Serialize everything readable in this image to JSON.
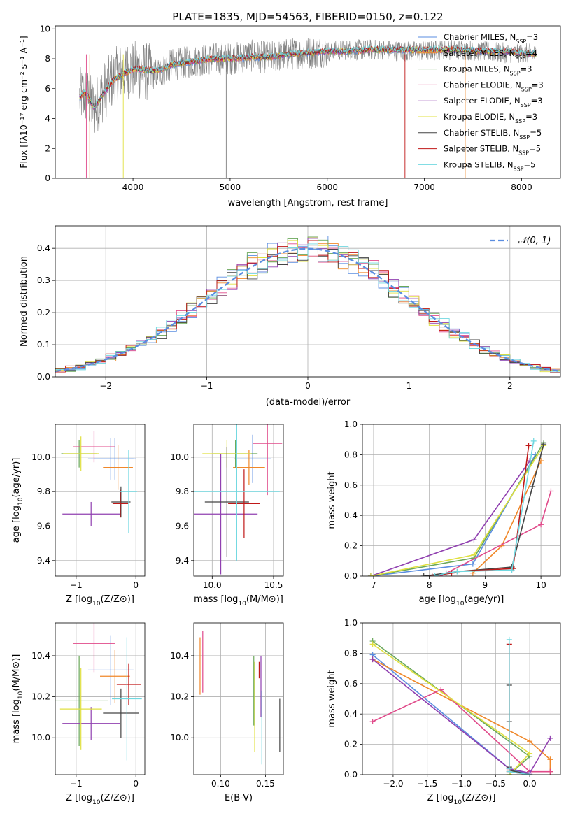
{
  "figure": {
    "title": "PLATE=1835, MJD=54563, FIBERID=0150, z=0.122"
  },
  "colors": [
    "#5a8de0",
    "#f0882a",
    "#6aa85a",
    "#e04a8a",
    "#9040b0",
    "#e0e040",
    "#444444",
    "#c01818",
    "#70d8e0"
  ],
  "chart_data": [
    {
      "type": "line",
      "id": "spectrum",
      "title": "PLATE=1835, MJD=54563, FIBERID=0150, z=0.122",
      "xlabel": "wavelength [Angstrom, rest frame]",
      "ylabel": "Flux [fλ10⁻¹⁷ erg cm⁻² s⁻¹ A⁻¹]",
      "xlim": [
        3200,
        8400
      ],
      "ylim": [
        0,
        10.2
      ],
      "xticks": [
        4000,
        5000,
        6000,
        7000,
        8000
      ],
      "yticks": [
        0,
        2,
        4,
        6,
        8,
        10
      ],
      "grid": false,
      "legend_position": "top-right",
      "data_series": {
        "name": "data",
        "color": "#808080",
        "x": [
          3450,
          3500,
          3550,
          3600,
          3700,
          3800,
          3900,
          4000,
          4100,
          4200,
          4300,
          4400,
          4600,
          4800,
          5000,
          5200,
          5400,
          5600,
          5800,
          6000,
          6200,
          6400,
          6600,
          6800,
          7000,
          7200,
          7400,
          7600,
          7800,
          8000,
          8150
        ],
        "y": [
          5.4,
          5.7,
          5.2,
          4.6,
          5.8,
          6.7,
          7.2,
          7.3,
          7.2,
          7.0,
          7.2,
          7.6,
          7.8,
          8.0,
          8.0,
          8.2,
          8.1,
          8.3,
          8.4,
          8.5,
          8.6,
          8.6,
          8.6,
          8.5,
          8.5,
          8.6,
          8.6,
          8.5,
          8.4,
          8.4,
          8.3
        ],
        "noise_amp": 2.0
      },
      "model": {
        "x": [
          3450,
          3500,
          3550,
          3600,
          3700,
          3800,
          3900,
          4000,
          4100,
          4200,
          4300,
          4400,
          4600,
          4800,
          5000,
          5200,
          5400,
          5600,
          5800,
          6000,
          6200,
          6400,
          6600,
          6800,
          7000,
          7200,
          7400,
          7600,
          7800,
          8000,
          8150
        ],
        "y": [
          5.4,
          5.8,
          5.3,
          4.7,
          5.7,
          6.6,
          7.0,
          7.3,
          7.3,
          7.2,
          7.3,
          7.6,
          7.8,
          8.0,
          8.0,
          8.1,
          8.1,
          8.3,
          8.4,
          8.5,
          8.5,
          8.6,
          8.6,
          8.6,
          8.6,
          8.6,
          8.6,
          8.5,
          8.5,
          8.4,
          8.3
        ]
      },
      "series": [
        {
          "name": "Chabrier MILES, N_SSP=3",
          "label_main": "Chabrier MILES, N",
          "label_sub": "SSP",
          "label_tail": "=3",
          "color": "#5a8de0"
        },
        {
          "name": "Salpeter MILES, N_SSP=4",
          "label_main": "Salpeter MILES, N",
          "label_sub": "SSP",
          "label_tail": "=4",
          "color": "#f0882a"
        },
        {
          "name": "Kroupa MILES, N_SSP=3",
          "label_main": "Kroupa MILES, N",
          "label_sub": "SSP",
          "label_tail": "=3",
          "color": "#6aa85a"
        },
        {
          "name": "Chabrier ELODIE, N_SSP=3",
          "label_main": "Chabrier ELODIE, N",
          "label_sub": "SSP",
          "label_tail": "=3",
          "color": "#e04a8a"
        },
        {
          "name": "Salpeter ELODIE, N_SSP=3",
          "label_main": "Salpeter ELODIE, N",
          "label_sub": "SSP",
          "label_tail": "=3",
          "color": "#9040b0"
        },
        {
          "name": "Kroupa ELODIE, N_SSP=3",
          "label_main": "Kroupa ELODIE, N",
          "label_sub": "SSP",
          "label_tail": "=3",
          "color": "#e0e040"
        },
        {
          "name": "Chabrier STELIB, N_SSP=5",
          "label_main": "Chabrier STELIB, N",
          "label_sub": "SSP",
          "label_tail": "=5",
          "color": "#444444"
        },
        {
          "name": "Salpeter STELIB, N_SSP=5",
          "label_main": "Salpeter STELIB, N",
          "label_sub": "SSP",
          "label_tail": "=5",
          "color": "#c01818"
        },
        {
          "name": "Kroupa STELIB, N_SSP=5",
          "label_main": "Kroupa STELIB, N",
          "label_sub": "SSP",
          "label_tail": "=5",
          "color": "#70d8e0"
        }
      ]
    },
    {
      "type": "histogram",
      "id": "residuals",
      "xlabel": "(data-model)/error",
      "ylabel": "Normed distribution",
      "xlim": [
        -2.5,
        2.5
      ],
      "ylim": [
        0,
        0.47
      ],
      "xticks": [
        -2,
        -1,
        0,
        1,
        2
      ],
      "xtick_labels": [
        "−2",
        "−1",
        "0",
        "1",
        "2"
      ],
      "yticks": [
        0,
        0.1,
        0.2,
        0.3,
        0.4
      ],
      "ytick_labels": [
        "0.0",
        "0.1",
        "0.2",
        "0.3",
        "0.4"
      ],
      "grid": true,
      "legend_position": "top-right",
      "bin_width": 0.1,
      "gaussian": {
        "name": "𝒩(0, 1)",
        "mean": 0,
        "sigma": 1,
        "color": "#5a8de0",
        "dashed": true
      }
    },
    {
      "type": "scatter",
      "id": "age_vs_Z",
      "xlabel_pre": "Z [log",
      "xlabel_sub": "10",
      "xlabel_post": "(Z/Z⊙)]",
      "ylabel_pre": "age  [log",
      "ylabel_sub": "10",
      "ylabel_post": "(age/yr)]",
      "xlim": [
        -1.35,
        0.15
      ],
      "ylim": [
        9.31,
        10.19
      ],
      "xticks": [
        -1,
        0
      ],
      "xtick_labels": [
        "−1",
        "0"
      ],
      "yticks": [
        9.4,
        9.6,
        9.8,
        10.0
      ],
      "ytick_labels": [
        "9.4",
        "9.6",
        "9.8",
        "10.0"
      ],
      "grid": true,
      "points": [
        {
          "x": -0.42,
          "y": 9.99,
          "xerr": 0.38,
          "yerr": 0.12,
          "color": "#5a8de0"
        },
        {
          "x": -0.35,
          "y": 9.99,
          "xerr": 0.35,
          "yerr": 0.12,
          "color": "#5a8de0"
        },
        {
          "x": -0.3,
          "y": 9.94,
          "xerr": 0.25,
          "yerr": 0.13,
          "color": "#f0882a"
        },
        {
          "x": -0.95,
          "y": 10.02,
          "xerr": 0.3,
          "yerr": 0.08,
          "color": "#6aa85a"
        },
        {
          "x": -0.7,
          "y": 10.06,
          "xerr": 0.35,
          "yerr": 0.09,
          "color": "#e04a8a"
        },
        {
          "x": -0.75,
          "y": 9.67,
          "xerr": 0.48,
          "yerr": 0.07,
          "color": "#9040b0"
        },
        {
          "x": -0.92,
          "y": 10.02,
          "xerr": 0.3,
          "yerr": 0.1,
          "color": "#e0e040"
        },
        {
          "x": -0.25,
          "y": 9.74,
          "xerr": 0.16,
          "yerr": 0.09,
          "color": "#444444"
        },
        {
          "x": -0.26,
          "y": 9.73,
          "xerr": 0.13,
          "yerr": 0.08,
          "color": "#c01818"
        },
        {
          "x": -0.12,
          "y": 9.8,
          "xerr": 0.14,
          "yerr": 0.24,
          "color": "#70d8e0"
        }
      ]
    },
    {
      "type": "scatter",
      "id": "age_vs_mass",
      "xlabel_pre": "mass [log",
      "xlabel_sub": "10",
      "xlabel_post": "(M/M⊙)]",
      "xlim": [
        9.85,
        10.58
      ],
      "ylim": [
        9.31,
        10.19
      ],
      "xticks": [
        10.0,
        10.5
      ],
      "xtick_labels": [
        "10.0",
        "10.5"
      ],
      "yticks": [
        9.4,
        9.6,
        9.8,
        10.0
      ],
      "ytick_labels": [
        "9.4",
        "9.6",
        "9.8",
        "10.0"
      ],
      "grid": true,
      "points": [
        {
          "x": 10.33,
          "y": 9.99,
          "xerr": 0.15,
          "yerr": 0.14,
          "color": "#5a8de0"
        },
        {
          "x": 10.3,
          "y": 9.94,
          "xerr": 0.13,
          "yerr": 0.1,
          "color": "#f0882a"
        },
        {
          "x": 10.19,
          "y": 10.02,
          "xerr": 0.18,
          "yerr": 0.08,
          "color": "#6aa85a"
        },
        {
          "x": 10.45,
          "y": 10.08,
          "xerr": 0.12,
          "yerr": 0.3,
          "color": "#e04a8a"
        },
        {
          "x": 10.07,
          "y": 9.67,
          "xerr": 0.3,
          "yerr": 0.35,
          "color": "#9040b0"
        },
        {
          "x": 10.12,
          "y": 10.02,
          "xerr": 0.2,
          "yerr": 0.08,
          "color": "#e0e040"
        },
        {
          "x": 10.12,
          "y": 9.74,
          "xerr": 0.18,
          "yerr": 0.32,
          "color": "#444444"
        },
        {
          "x": 10.26,
          "y": 9.73,
          "xerr": 0.13,
          "yerr": 0.2,
          "color": "#c01818"
        },
        {
          "x": 10.2,
          "y": 9.8,
          "xerr": 0.35,
          "yerr": 0.4,
          "color": "#70d8e0"
        }
      ]
    },
    {
      "type": "line",
      "id": "mass_weight_vs_age",
      "xlabel_pre": "age  [log",
      "xlabel_sub": "10",
      "xlabel_post": "(age/yr)]",
      "ylabel": "mass weight",
      "xlim": [
        6.8,
        10.35
      ],
      "ylim": [
        0,
        1.0
      ],
      "xticks": [
        7,
        8,
        9,
        10
      ],
      "yticks": [
        0,
        0.2,
        0.4,
        0.6,
        0.8,
        1.0
      ],
      "ytick_labels": [
        "0.0",
        "0.2",
        "0.4",
        "0.6",
        "0.8",
        "1.0"
      ],
      "grid": true,
      "series": [
        {
          "color": "#5a8de0",
          "x": [
            6.95,
            8.78,
            9.9
          ],
          "y": [
            0.0,
            0.08,
            0.8
          ]
        },
        {
          "color": "#f0882a",
          "x": [
            8.78,
            9.3,
            10.0
          ],
          "y": [
            0.02,
            0.2,
            0.76
          ]
        },
        {
          "color": "#6aa85a",
          "x": [
            6.95,
            8.8,
            10.05
          ],
          "y": [
            0.0,
            0.12,
            0.88
          ]
        },
        {
          "color": "#e04a8a",
          "x": [
            8.2,
            10.0,
            10.18
          ],
          "y": [
            0.0,
            0.34,
            0.56
          ]
        },
        {
          "color": "#9040b0",
          "x": [
            6.95,
            8.8,
            9.8
          ],
          "y": [
            0.0,
            0.24,
            0.76
          ]
        },
        {
          "color": "#e0e040",
          "x": [
            6.95,
            8.8,
            10.05
          ],
          "y": [
            0.0,
            0.14,
            0.86
          ]
        },
        {
          "color": "#444444",
          "x": [
            7.9,
            8.3,
            8.5,
            9.48,
            9.85,
            10.05
          ],
          "y": [
            0.0,
            0.02,
            0.03,
            0.06,
            0.59,
            0.87
          ]
        },
        {
          "color": "#c01818",
          "x": [
            8.05,
            8.4,
            8.5,
            9.5,
            9.78
          ],
          "y": [
            0.0,
            0.02,
            0.03,
            0.05,
            0.86
          ]
        },
        {
          "color": "#70d8e0",
          "x": [
            8.1,
            8.3,
            8.5,
            9.48,
            9.87
          ],
          "y": [
            0.0,
            0.02,
            0.03,
            0.04,
            0.89
          ]
        }
      ]
    },
    {
      "type": "scatter",
      "id": "mass_vs_Z",
      "xlabel_pre": "Z [log",
      "xlabel_sub": "10",
      "xlabel_post": "(Z/Z⊙)]",
      "ylabel_pre": "mass [log",
      "ylabel_sub": "10",
      "ylabel_post": "(M/M⊙)]",
      "xlim": [
        -1.35,
        0.15
      ],
      "ylim": [
        9.82,
        10.56
      ],
      "xticks": [
        -1,
        0
      ],
      "xtick_labels": [
        "−1",
        "0"
      ],
      "yticks": [
        10.0,
        10.2,
        10.4
      ],
      "ytick_labels": [
        "10.0",
        "10.2",
        "10.4"
      ],
      "grid": true,
      "points": [
        {
          "x": -0.42,
          "y": 10.33,
          "xerr": 0.38,
          "yerr": 0.17,
          "color": "#5a8de0"
        },
        {
          "x": -0.35,
          "y": 10.3,
          "xerr": 0.25,
          "yerr": 0.13,
          "color": "#f0882a"
        },
        {
          "x": -0.95,
          "y": 10.18,
          "xerr": 0.48,
          "yerr": 0.22,
          "color": "#6aa85a"
        },
        {
          "x": -0.7,
          "y": 10.46,
          "xerr": 0.35,
          "yerr": 0.14,
          "color": "#e04a8a"
        },
        {
          "x": -0.75,
          "y": 10.07,
          "xerr": 0.48,
          "yerr": 0.08,
          "color": "#9040b0"
        },
        {
          "x": -0.92,
          "y": 10.14,
          "xerr": 0.35,
          "yerr": 0.2,
          "color": "#e0e040"
        },
        {
          "x": -0.25,
          "y": 10.12,
          "xerr": 0.3,
          "yerr": 0.12,
          "color": "#444444"
        },
        {
          "x": -0.12,
          "y": 10.26,
          "xerr": 0.2,
          "yerr": 0.1,
          "color": "#c01818"
        },
        {
          "x": -0.15,
          "y": 10.19,
          "xerr": 0.25,
          "yerr": 0.3,
          "color": "#70d8e0"
        }
      ]
    },
    {
      "type": "scatter",
      "id": "mass_vs_ebv",
      "xlabel": "E(B-V)",
      "xlim": [
        0.07,
        0.17
      ],
      "ylim": [
        9.82,
        10.56
      ],
      "xticks": [
        0.1,
        0.15
      ],
      "xtick_labels": [
        "0.10",
        "0.15"
      ],
      "yticks": [
        10.0,
        10.2,
        10.4
      ],
      "ytick_labels": [
        "10.0",
        "10.2",
        "10.4"
      ],
      "grid": true,
      "points": [
        {
          "x": 0.077,
          "y": 10.35,
          "yerr": 0.14,
          "color": "#f0882a"
        },
        {
          "x": 0.08,
          "y": 10.37,
          "yerr": 0.15,
          "color": "#e04a8a"
        },
        {
          "x": 0.137,
          "y": 10.23,
          "yerr": 0.17,
          "color": "#6aa85a"
        },
        {
          "x": 0.138,
          "y": 10.15,
          "yerr": 0.22,
          "color": "#e0e040"
        },
        {
          "x": 0.143,
          "y": 10.33,
          "yerr": 0.04,
          "color": "#c01818"
        },
        {
          "x": 0.145,
          "y": 10.25,
          "yerr": 0.15,
          "color": "#9040b0"
        },
        {
          "x": 0.146,
          "y": 10.05,
          "yerr": 0.18,
          "color": "#70d8e0"
        },
        {
          "x": 0.166,
          "y": 10.06,
          "yerr": 0.13,
          "color": "#444444"
        }
      ]
    },
    {
      "type": "line",
      "id": "mass_weight_vs_Z",
      "xlabel_pre": "Z [log",
      "xlabel_sub": "10",
      "xlabel_post": "(Z/Z⊙)]",
      "ylabel": "mass weight",
      "xlim": [
        -2.45,
        0.45
      ],
      "ylim": [
        0,
        1.0
      ],
      "xticks": [
        -2.0,
        -1.5,
        -1.0,
        -0.5,
        0.0
      ],
      "xtick_labels": [
        "−2.0",
        "−1.5",
        "−1.0",
        "−0.5",
        "0.0"
      ],
      "yticks": [
        0,
        0.2,
        0.4,
        0.6,
        0.8,
        1.0
      ],
      "ytick_labels": [
        "0.0",
        "0.2",
        "0.4",
        "0.6",
        "0.8",
        "1.0"
      ],
      "grid": true,
      "series": [
        {
          "color": "#5a8de0",
          "x": [
            -2.3,
            -0.3,
            0.0
          ],
          "y": [
            0.79,
            0.04,
            0.0
          ]
        },
        {
          "color": "#f0882a",
          "x": [
            -2.3,
            0.0,
            0.3,
            0.3
          ],
          "y": [
            0.76,
            0.22,
            0.1,
            0.02
          ]
        },
        {
          "color": "#6aa85a",
          "x": [
            -2.3,
            0.0,
            -0.3
          ],
          "y": [
            0.88,
            0.12,
            0.0
          ]
        },
        {
          "color": "#e04a8a",
          "x": [
            -2.3,
            -1.3,
            0.0,
            0.3
          ],
          "y": [
            0.35,
            0.56,
            0.02,
            0.02
          ]
        },
        {
          "color": "#9040b0",
          "x": [
            -2.3,
            -0.3,
            0.0,
            0.3
          ],
          "y": [
            0.76,
            0.04,
            0.01,
            0.24
          ]
        },
        {
          "color": "#e0e040",
          "x": [
            -2.3,
            0.0,
            -0.3
          ],
          "y": [
            0.86,
            0.14,
            0.0
          ]
        },
        {
          "color": "#444444",
          "x": [
            -0.3,
            -0.3,
            -0.3,
            -0.3,
            0.0
          ],
          "y": [
            0.59,
            0.35,
            0.05,
            0.03,
            0.0
          ]
        },
        {
          "color": "#c01818",
          "x": [
            -0.3,
            -0.3,
            -0.3,
            0.0
          ],
          "y": [
            0.86,
            0.03,
            0.02,
            0.0
          ]
        },
        {
          "color": "#70d8e0",
          "x": [
            -0.3,
            -0.3,
            -0.3,
            0.0
          ],
          "y": [
            0.89,
            0.04,
            0.02,
            0.0
          ]
        }
      ]
    }
  ]
}
